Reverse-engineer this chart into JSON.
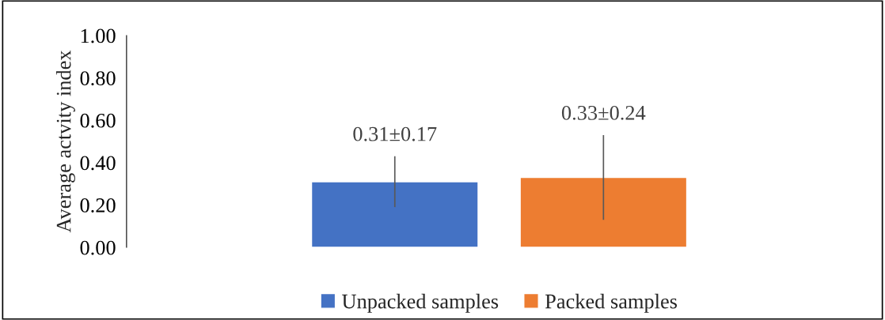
{
  "chart_data": {
    "type": "bar",
    "ylabel": "Average actvity index",
    "categories": [
      null
    ],
    "series": [
      {
        "name": "Unpacked samples",
        "color": "#4472c4",
        "values": [
          0.31
        ],
        "errors": [
          0.12
        ],
        "value_labels": [
          "0.31±0.17"
        ]
      },
      {
        "name": "Packed samples",
        "color": "#ed7d31",
        "values": [
          0.33
        ],
        "errors": [
          0.2
        ],
        "value_labels": [
          "0.33±0.24"
        ]
      }
    ],
    "ylim": [
      0,
      1
    ],
    "yticks": [
      {
        "value": 0,
        "label": "0.00"
      },
      {
        "value": 0.2,
        "label": "0.20"
      },
      {
        "value": 0.4,
        "label": "0.40"
      },
      {
        "value": 0.6,
        "label": "0.60"
      },
      {
        "value": 0.8,
        "label": "0.80"
      },
      {
        "value": 1,
        "label": "1.00"
      }
    ],
    "grid": false,
    "legend": "bottom",
    "tick_labels": "y"
  }
}
